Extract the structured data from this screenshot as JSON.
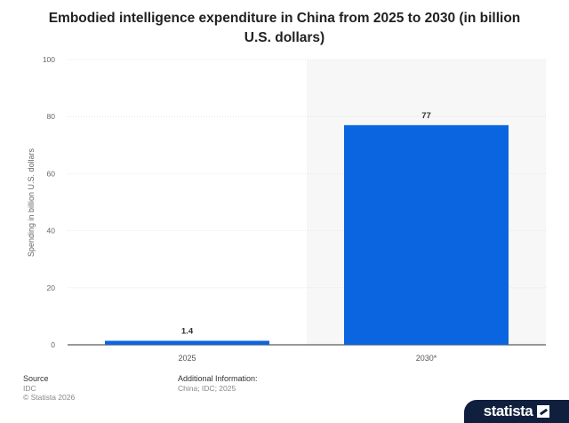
{
  "chart_data": {
    "type": "bar",
    "title": "Embodied intelligence expenditure in China from 2025 to 2030 (in billion U.S. dollars)",
    "xlabel": "",
    "ylabel": "Spending in billion U.S. dollars",
    "categories": [
      "2025",
      "2030*"
    ],
    "values": [
      1.4,
      77
    ],
    "data_labels": [
      "1.4",
      "77"
    ],
    "ylim": [
      0,
      100
    ],
    "yticks": [
      0,
      20,
      40,
      60,
      80,
      100
    ],
    "grid": true,
    "legend": "none",
    "highlight_category": "2030*",
    "colors": {
      "bar": "#0b65e0",
      "highlight_background": "#f7f7f7",
      "grid": "#dddddd"
    }
  },
  "footer": {
    "source_heading": "Source",
    "source_name": "IDC",
    "copyright": "© Statista 2026",
    "info_heading": "Additional Information:",
    "info_text": "China; IDC; 2025"
  },
  "brand": {
    "name": "statista",
    "icon": "statista-logo-icon"
  }
}
